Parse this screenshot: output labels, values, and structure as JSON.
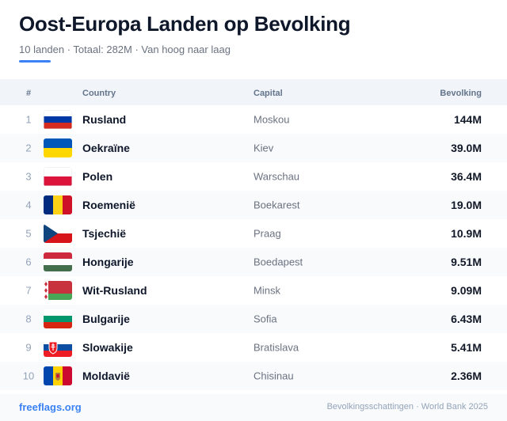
{
  "header": {
    "title": "Oost-Europa Landen op Bevolking",
    "subtitle": "10 landen · Totaal: 282M · Van hoog naar laag"
  },
  "table": {
    "columns": {
      "rank": "#",
      "country": "Country",
      "capital": "Capital",
      "population": "Bevolking"
    },
    "rows": [
      {
        "rank": "1",
        "flag": "russia-flag",
        "country": "Rusland",
        "capital": "Moskou",
        "population": "144M"
      },
      {
        "rank": "2",
        "flag": "ukraine-flag",
        "country": "Oekraïne",
        "capital": "Kiev",
        "population": "39.0M"
      },
      {
        "rank": "3",
        "flag": "poland-flag",
        "country": "Polen",
        "capital": "Warschau",
        "population": "36.4M"
      },
      {
        "rank": "4",
        "flag": "romania-flag",
        "country": "Roemenië",
        "capital": "Boekarest",
        "population": "19.0M"
      },
      {
        "rank": "5",
        "flag": "czechia-flag",
        "country": "Tsjechië",
        "capital": "Praag",
        "population": "10.9M"
      },
      {
        "rank": "6",
        "flag": "hungary-flag",
        "country": "Hongarije",
        "capital": "Boedapest",
        "population": "9.51M"
      },
      {
        "rank": "7",
        "flag": "belarus-flag",
        "country": "Wit-Rusland",
        "capital": "Minsk",
        "population": "9.09M"
      },
      {
        "rank": "8",
        "flag": "bulgaria-flag",
        "country": "Bulgarije",
        "capital": "Sofia",
        "population": "6.43M"
      },
      {
        "rank": "9",
        "flag": "slovakia-flag",
        "country": "Slowakije",
        "capital": "Bratislava",
        "population": "5.41M"
      },
      {
        "rank": "10",
        "flag": "moldova-flag",
        "country": "Moldavië",
        "capital": "Chisinau",
        "population": "2.36M"
      }
    ]
  },
  "footer": {
    "brand": "freeflags.org",
    "source": "Bevolkingsschattingen · World Bank 2025"
  },
  "colors": {
    "accent": "#3b82f6",
    "title": "#0f172a",
    "muted": "#6b7280"
  }
}
